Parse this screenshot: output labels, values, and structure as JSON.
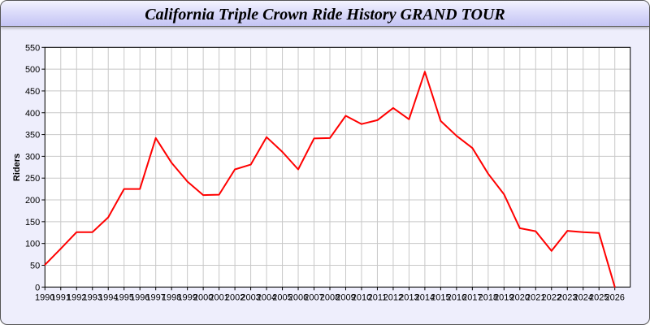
{
  "title": "California Triple Crown Ride History GRAND TOUR",
  "chart_data": {
    "type": "line",
    "title": "California Triple Crown Ride History GRAND TOUR",
    "xlabel": "",
    "ylabel": "Riders",
    "ylim": [
      0,
      550
    ],
    "yticks": [
      0,
      50,
      100,
      150,
      200,
      250,
      300,
      350,
      400,
      450,
      500,
      550
    ],
    "grid": true,
    "line_color": "#ff0000",
    "x": [
      1990,
      1991,
      1992,
      1993,
      1994,
      1995,
      1996,
      1997,
      1998,
      1999,
      2000,
      2001,
      2002,
      2003,
      2004,
      2005,
      2006,
      2007,
      2008,
      2009,
      2010,
      2011,
      2012,
      2013,
      2014,
      2015,
      2016,
      2017,
      2018,
      2019,
      2020,
      2021,
      2022,
      2023,
      2024,
      2025,
      2026
    ],
    "values": [
      51,
      88,
      126,
      126,
      160,
      225,
      225,
      342,
      285,
      242,
      211,
      212,
      270,
      281,
      344,
      310,
      270,
      341,
      342,
      393,
      374,
      383,
      411,
      385,
      494,
      381,
      347,
      319,
      260,
      213,
      135,
      128,
      83,
      129,
      126,
      124,
      0
    ]
  }
}
